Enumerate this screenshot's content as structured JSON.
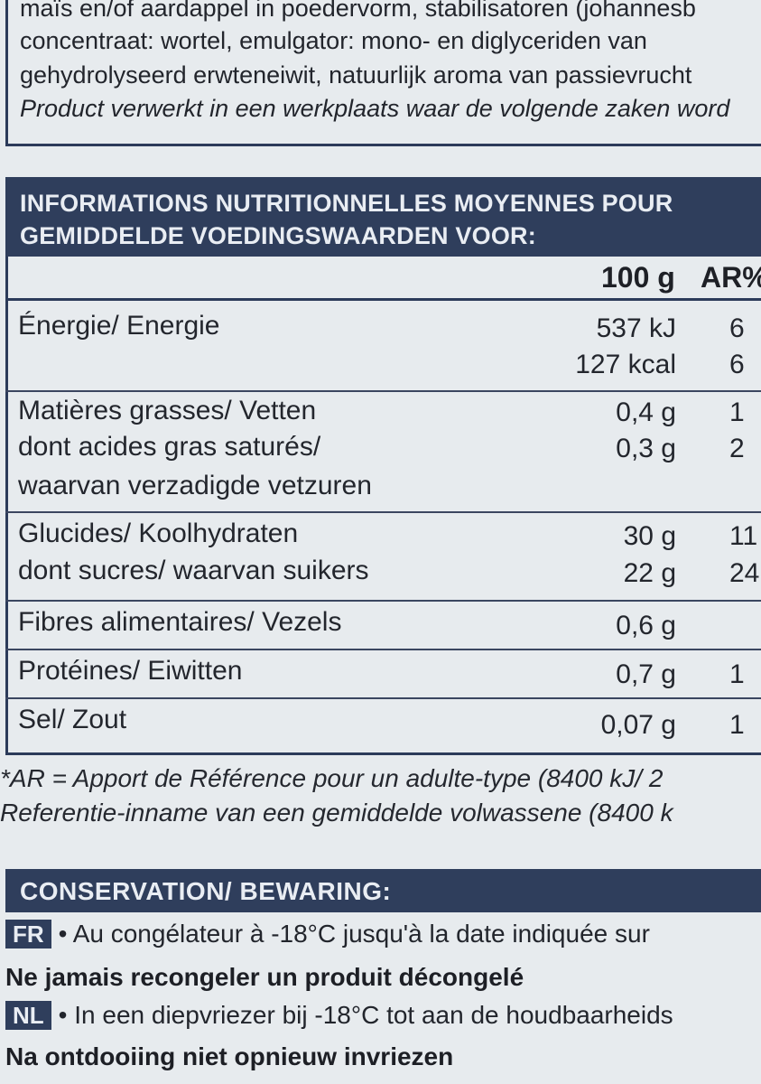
{
  "ingredients": {
    "lines": [
      "maïs en/of aardappel in poedervorm, stabilisatoren (johannesb",
      "concentraat: wortel, emulgator: mono- en diglyceriden van",
      "gehydrolyseerd erwteneiwit, natuurlijk aroma van passievrucht",
      "Product verwerkt in een werkplaats waar de volgende zaken word"
    ]
  },
  "nutrition": {
    "header_line_1": "INFORMATIONS NUTRITIONNELLES MOYENNES POUR",
    "header_line_2": "GEMIDDELDE VOEDINGSWAARDEN VOOR:",
    "col_100g": "100 g",
    "col_ar": "AR%",
    "rows": [
      {
        "label": "Énergie/ Energie",
        "value": "537 kJ",
        "ar": "6"
      },
      {
        "label": "",
        "value": "127 kcal",
        "ar": "6"
      },
      {
        "label": "Matières grasses/ Vetten",
        "value": "0,4 g",
        "ar": "1"
      },
      {
        "label": "dont acides gras saturés/",
        "value": "0,3 g",
        "ar": "2"
      },
      {
        "label": "waarvan verzadigde vetzuren",
        "value": "",
        "ar": ""
      },
      {
        "label": "Glucides/ Koolhydraten",
        "value": "30 g",
        "ar": "11"
      },
      {
        "label": "dont sucres/ waarvan suikers",
        "value": "22 g",
        "ar": "24"
      },
      {
        "label": "Fibres alimentaires/ Vezels",
        "value": "0,6 g",
        "ar": ""
      },
      {
        "label": "Protéines/ Eiwitten",
        "value": "0,7 g",
        "ar": "1"
      },
      {
        "label": "Sel/ Zout",
        "value": "0,07 g",
        "ar": "1"
      }
    ],
    "footnote_1": "*AR = Apport de Référence pour un adulte-type (8400 kJ/ 2",
    "footnote_2": "Referentie-inname van een gemiddelde volwassene (8400 k"
  },
  "conservation": {
    "title": "CONSERVATION/ BEWARING:",
    "fr_badge": "FR",
    "fr_text": "• Au congélateur à -18°C jusqu'à la date indiquée sur",
    "fr_bold": "Ne jamais recongeler un produit décongelé",
    "nl_badge": "NL",
    "nl_text": "• In een diepvriezer bij -18°C tot aan de houdbaarheids",
    "nl_bold": "Na ontdooiing niet opnieuw invriezen"
  },
  "colors": {
    "navy": "#2f3e5c",
    "paper": "#e7ebee"
  }
}
